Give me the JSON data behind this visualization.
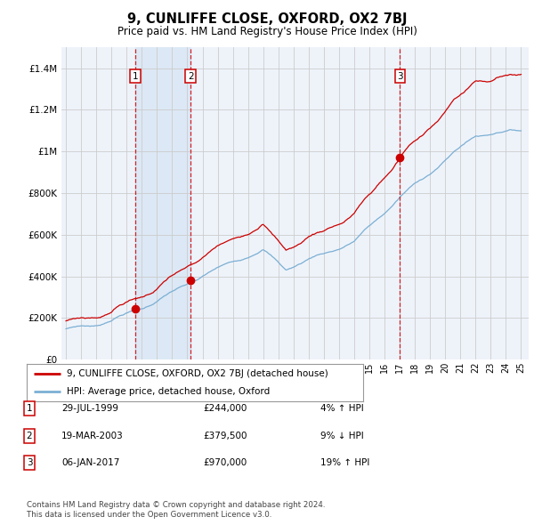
{
  "title": "9, CUNLIFFE CLOSE, OXFORD, OX2 7BJ",
  "subtitle": "Price paid vs. HM Land Registry's House Price Index (HPI)",
  "ylabel_ticks": [
    "£0",
    "£200K",
    "£400K",
    "£600K",
    "£800K",
    "£1M",
    "£1.2M",
    "£1.4M"
  ],
  "ytick_values": [
    0,
    200000,
    400000,
    600000,
    800000,
    1000000,
    1200000,
    1400000
  ],
  "ylim": [
    0,
    1500000
  ],
  "xlim_start": 1994.7,
  "xlim_end": 2025.5,
  "legend_line1": "9, CUNLIFFE CLOSE, OXFORD, OX2 7BJ (detached house)",
  "legend_line2": "HPI: Average price, detached house, Oxford",
  "sale1_date": 1999.57,
  "sale1_price": 244000,
  "sale1_label": "1",
  "sale2_date": 2003.22,
  "sale2_price": 379500,
  "sale2_label": "2",
  "sale3_date": 2017.02,
  "sale3_price": 970000,
  "sale3_label": "3",
  "table_data": [
    [
      "1",
      "29-JUL-1999",
      "£244,000",
      "4% ↑ HPI"
    ],
    [
      "2",
      "19-MAR-2003",
      "£379,500",
      "9% ↓ HPI"
    ],
    [
      "3",
      "06-JAN-2017",
      "£970,000",
      "19% ↑ HPI"
    ]
  ],
  "footnote1": "Contains HM Land Registry data © Crown copyright and database right 2024.",
  "footnote2": "This data is licensed under the Open Government Licence v3.0.",
  "hpi_color": "#7bafd4",
  "price_color": "#cc0000",
  "vline_color": "#cc0000",
  "shade_color": "#dce8f5",
  "grid_color": "#cccccc",
  "bg_color": "#ffffff",
  "plot_bg_color": "#eef3fa"
}
